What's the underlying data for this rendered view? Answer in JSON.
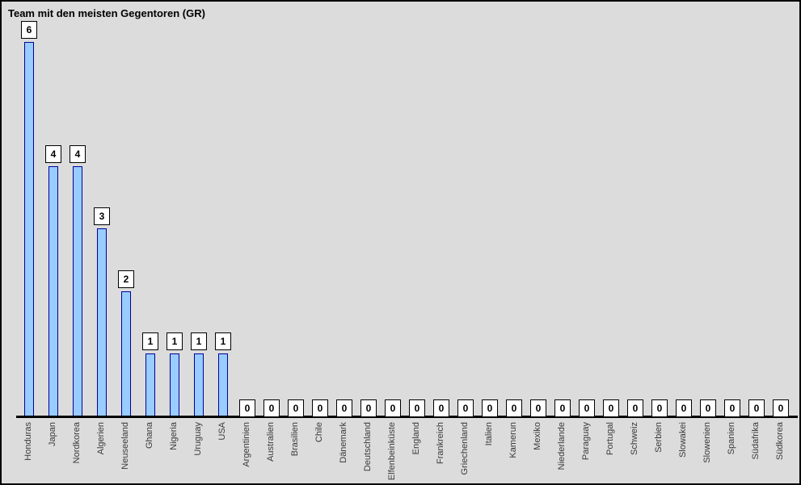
{
  "chart_data": {
    "type": "bar",
    "title": "Team mit den meisten Gegentoren (GR)",
    "categories": [
      "Honduras",
      "Japan",
      "Nordkorea",
      "Algerien",
      "Neuseeland",
      "Ghana",
      "Nigeria",
      "Uruguay",
      "USA",
      "Argentinien",
      "Australien",
      "Brasilien",
      "Chile",
      "Dänemark",
      "Deutschland",
      "Elfenbeinküste",
      "England",
      "Frankreich",
      "Griechenland",
      "Italien",
      "Kamerun",
      "Mexiko",
      "Niederlande",
      "Paraguay",
      "Portugal",
      "Schweiz",
      "Serbien",
      "Slowakei",
      "Slowenien",
      "Spanien",
      "Südafrika",
      "Südkorea"
    ],
    "values": [
      6,
      4,
      4,
      3,
      2,
      1,
      1,
      1,
      1,
      0,
      0,
      0,
      0,
      0,
      0,
      0,
      0,
      0,
      0,
      0,
      0,
      0,
      0,
      0,
      0,
      0,
      0,
      0,
      0,
      0,
      0,
      0
    ],
    "value_labels_shown": true,
    "xlabel": "",
    "ylabel": "",
    "ylim": [
      0,
      6
    ],
    "grid": false,
    "legend": "none",
    "x_label_rotation_deg": 90,
    "colors": {
      "background": "#dcdcdc",
      "frame_border": "#000000",
      "bar_fill": "#99ccff",
      "bar_border": "#000099",
      "axis": "#000000",
      "value_box_bg": "#ffffff",
      "value_box_border": "#000000",
      "title_text": "#000000",
      "x_label_text": "#3a3a3a"
    }
  }
}
